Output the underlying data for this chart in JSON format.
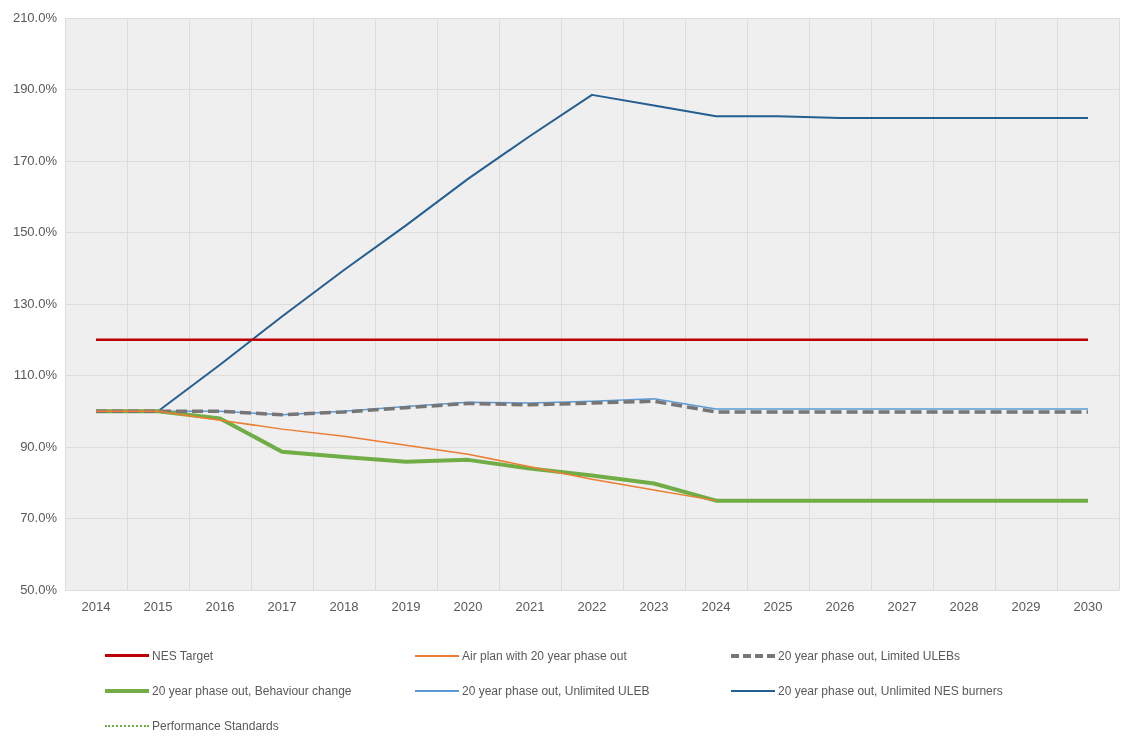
{
  "chart_data": {
    "type": "line",
    "categories": [
      "2014",
      "2015",
      "2016",
      "2017",
      "2018",
      "2019",
      "2020",
      "2021",
      "2022",
      "2023",
      "2024",
      "2025",
      "2026",
      "2027",
      "2028",
      "2029",
      "2030"
    ],
    "ylim": [
      50,
      210
    ],
    "yticks": [
      {
        "value": 50,
        "label": "50.0%"
      },
      {
        "value": 70,
        "label": "70.0%"
      },
      {
        "value": 90,
        "label": "90.0%"
      },
      {
        "value": 110,
        "label": "110.0%"
      },
      {
        "value": 130,
        "label": "130.0%"
      },
      {
        "value": 150,
        "label": "150.0%"
      },
      {
        "value": 170,
        "label": "170.0%"
      },
      {
        "value": 190,
        "label": "190.0%"
      },
      {
        "value": 210,
        "label": "210.0%"
      }
    ],
    "grid": true,
    "legend": "bottom",
    "marker": "none",
    "series": [
      {
        "name": "NES Target",
        "color": "#c00000",
        "values": [
          120,
          120,
          120,
          120,
          120,
          120,
          120,
          120,
          120,
          120,
          120,
          120,
          120,
          120,
          120,
          120,
          120
        ]
      },
      {
        "name": "Air plan with 20 year phase out",
        "color": "#ed7d31",
        "values": [
          100,
          100,
          97.5,
          95,
          93,
          90.5,
          88,
          84.5,
          81,
          78,
          75,
          null,
          null,
          null,
          null,
          null,
          null
        ]
      },
      {
        "name": "20 year phase out, Limited ULEBs",
        "color": "#767676",
        "line_style": "dashed",
        "values": [
          100,
          100,
          100,
          99,
          99.8,
          101,
          102.2,
          101.8,
          102.3,
          102.8,
          99.8,
          99.8,
          99.8,
          99.8,
          99.8,
          99.8,
          99.8
        ]
      },
      {
        "name": "20 year phase out, Behaviour change",
        "color": "#70ad47",
        "values": [
          100,
          100,
          98,
          88.7,
          87.2,
          85.9,
          86.4,
          84,
          82,
          79.8,
          75,
          75,
          75,
          75,
          75,
          75,
          75
        ]
      },
      {
        "name": "20 year phase out, Unlimited ULEB",
        "color": "#5b9bd5",
        "values": [
          100,
          100,
          100,
          99,
          100,
          101.3,
          102.5,
          102.3,
          102.8,
          103.5,
          100.6,
          100.6,
          100.6,
          100.6,
          100.6,
          100.6,
          100.6
        ]
      },
      {
        "name": "20 year phase out, Unlimited NES burners",
        "color": "#255e91",
        "values": [
          null,
          100,
          113,
          126.5,
          139.5,
          152,
          165,
          177,
          188.5,
          185.5,
          182.5,
          182.5,
          182,
          182,
          182,
          182,
          182
        ]
      },
      {
        "name": "Performance Standards",
        "color": "#70ad47",
        "line_style": "dotted",
        "values": [
          null,
          null,
          null,
          null,
          null,
          null,
          null,
          null,
          null,
          null,
          null,
          null,
          null,
          null,
          null,
          null,
          null
        ]
      }
    ]
  }
}
